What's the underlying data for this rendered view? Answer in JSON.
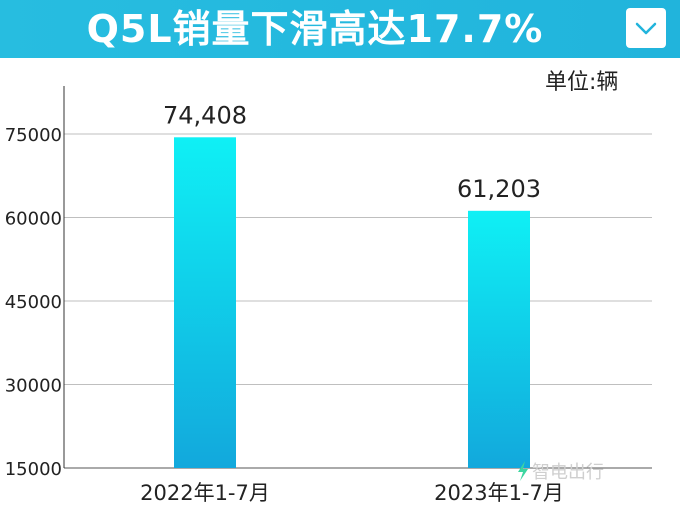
{
  "header": {
    "title": "Q5L销量下滑高达17.7%",
    "dropdown_icon": "chevron-down-icon"
  },
  "unit_label": "单位:辆",
  "watermark": {
    "text": "智电出行",
    "icon": "lightning-bolt-icon"
  },
  "colors": {
    "banner": "#22b8de",
    "bar_top": "#0ff0f5",
    "bar_bottom": "#12a8dc"
  },
  "chart_data": {
    "type": "bar",
    "title": "",
    "xlabel": "",
    "ylabel": "",
    "categories": [
      "2022年1-7月",
      "2023年1-7月"
    ],
    "values": [
      74408,
      61203
    ],
    "value_labels": [
      "74,408",
      "61,203"
    ],
    "yticks": [
      15000,
      30000,
      45000,
      60000,
      75000
    ],
    "ytick_labels": [
      "15000",
      "30000",
      "45000",
      "60000",
      "75000"
    ],
    "ylim": [
      15000,
      75000
    ],
    "grid": true,
    "legend": "none"
  }
}
